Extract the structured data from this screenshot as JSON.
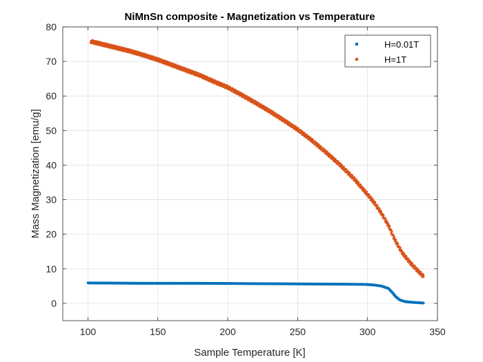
{
  "chart_data": {
    "type": "scatter",
    "title": "NiMnSn composite - Magnetization vs Temperature",
    "xlabel": "Sample Temperature [K]",
    "ylabel": "Mass Magnetization [emu/g]",
    "xlim": [
      82,
      350
    ],
    "ylim": [
      -5,
      80
    ],
    "xticks": [
      100,
      150,
      200,
      250,
      300,
      350
    ],
    "yticks": [
      0,
      10,
      20,
      30,
      40,
      50,
      60,
      70,
      80
    ],
    "grid": true,
    "legend_position": "top-right",
    "series": [
      {
        "name": "H=0.01T",
        "color": "#0072bd",
        "points": [
          [
            100,
            5.9
          ],
          [
            120,
            5.85
          ],
          [
            140,
            5.8
          ],
          [
            160,
            5.8
          ],
          [
            180,
            5.8
          ],
          [
            200,
            5.75
          ],
          [
            220,
            5.7
          ],
          [
            240,
            5.65
          ],
          [
            260,
            5.6
          ],
          [
            280,
            5.55
          ],
          [
            295,
            5.5
          ],
          [
            300,
            5.45
          ],
          [
            305,
            5.3
          ],
          [
            310,
            5.0
          ],
          [
            315,
            4.3
          ],
          [
            318,
            3.0
          ],
          [
            320,
            2.0
          ],
          [
            323,
            1.0
          ],
          [
            327,
            0.5
          ],
          [
            332,
            0.3
          ],
          [
            336,
            0.2
          ],
          [
            340,
            0.1
          ]
        ]
      },
      {
        "name": "H=1T",
        "color": "#d95319",
        "points": [
          [
            102,
            75.8
          ],
          [
            110,
            75.0
          ],
          [
            120,
            74.0
          ],
          [
            130,
            73.0
          ],
          [
            140,
            71.8
          ],
          [
            150,
            70.5
          ],
          [
            160,
            69.0
          ],
          [
            170,
            67.5
          ],
          [
            180,
            66.0
          ],
          [
            190,
            64.2
          ],
          [
            200,
            62.5
          ],
          [
            210,
            60.3
          ],
          [
            220,
            58.0
          ],
          [
            230,
            55.6
          ],
          [
            240,
            53.0
          ],
          [
            250,
            50.3
          ],
          [
            260,
            47.2
          ],
          [
            270,
            43.8
          ],
          [
            280,
            40.2
          ],
          [
            290,
            36.2
          ],
          [
            300,
            31.5
          ],
          [
            305,
            29.0
          ],
          [
            310,
            26.0
          ],
          [
            315,
            22.5
          ],
          [
            320,
            18.0
          ],
          [
            325,
            14.5
          ],
          [
            330,
            12.0
          ],
          [
            335,
            9.8
          ],
          [
            340,
            7.8
          ]
        ]
      }
    ]
  }
}
